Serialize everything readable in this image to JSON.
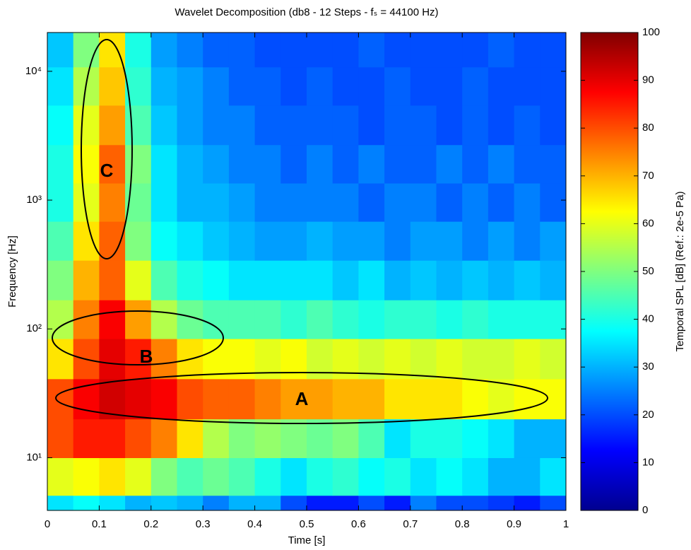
{
  "chart_data": {
    "type": "heatmap",
    "title": "Wavelet Decomposition (db8 - 12 Steps - fₛ = 44100 Hz)",
    "x_label": "Time [s]",
    "y_label": "Frequency [Hz]",
    "colorbar_label": "Temporal SPL [dB] (Ref.: 2e-5 Pa)",
    "colormap": "jet",
    "y_log": true,
    "xlim": [
      0,
      1
    ],
    "xticks": [
      0,
      0.1,
      0.2,
      0.3,
      0.4,
      0.5,
      0.6,
      0.7,
      0.8,
      0.9,
      1
    ],
    "ylim": [
      3.9,
      20000
    ],
    "yticks": [
      {
        "value": 10,
        "label": "10¹"
      },
      {
        "value": 100,
        "label": "10²"
      },
      {
        "value": 1000,
        "label": "10³"
      },
      {
        "value": 10000,
        "label": "10⁴"
      }
    ],
    "clim": [
      0,
      100
    ],
    "cticks": [
      0,
      10,
      20,
      30,
      40,
      50,
      60,
      70,
      80,
      90,
      100
    ],
    "x": [
      0.025,
      0.075,
      0.125,
      0.175,
      0.225,
      0.275,
      0.325,
      0.375,
      0.425,
      0.475,
      0.525,
      0.575,
      0.625,
      0.675,
      0.725,
      0.775,
      0.825,
      0.875,
      0.925,
      0.975
    ],
    "band_edges": [
      3.9,
      5.1,
      10,
      20,
      41,
      84,
      168,
      341,
      684,
      1355,
      2690,
      5450,
      10800,
      20000
    ],
    "z": [
      [
        35,
        38,
        35,
        30,
        32,
        30,
        25,
        30,
        30,
        20,
        15,
        15,
        20,
        15,
        25,
        20,
        20,
        18,
        15,
        20
      ],
      [
        60,
        62,
        65,
        60,
        50,
        45,
        48,
        45,
        40,
        35,
        40,
        42,
        38,
        40,
        35,
        38,
        35,
        30,
        30,
        35
      ],
      [
        80,
        85,
        85,
        80,
        75,
        65,
        55,
        50,
        52,
        50,
        48,
        50,
        45,
        35,
        40,
        40,
        38,
        35,
        30,
        30
      ],
      [
        80,
        88,
        92,
        90,
        88,
        80,
        78,
        78,
        75,
        72,
        72,
        70,
        70,
        65,
        65,
        65,
        62,
        60,
        62,
        62
      ],
      [
        65,
        80,
        90,
        85,
        75,
        65,
        62,
        62,
        60,
        62,
        58,
        60,
        58,
        60,
        58,
        60,
        58,
        58,
        60,
        58
      ],
      [
        55,
        75,
        88,
        72,
        55,
        48,
        45,
        45,
        45,
        42,
        45,
        42,
        40,
        42,
        42,
        40,
        42,
        40,
        40,
        40
      ],
      [
        50,
        70,
        78,
        60,
        45,
        40,
        38,
        35,
        35,
        35,
        35,
        32,
        35,
        30,
        32,
        30,
        32,
        30,
        32,
        30
      ],
      [
        45,
        65,
        78,
        50,
        38,
        35,
        32,
        30,
        28,
        28,
        30,
        28,
        28,
        25,
        28,
        28,
        25,
        28,
        25,
        28
      ],
      [
        40,
        60,
        75,
        48,
        35,
        30,
        30,
        28,
        25,
        25,
        25,
        25,
        22,
        25,
        25,
        22,
        25,
        22,
        25,
        22
      ],
      [
        40,
        62,
        78,
        50,
        35,
        30,
        28,
        25,
        25,
        22,
        25,
        22,
        25,
        22,
        22,
        25,
        22,
        25,
        22,
        22
      ],
      [
        38,
        60,
        72,
        45,
        32,
        28,
        25,
        25,
        22,
        22,
        22,
        22,
        20,
        22,
        22,
        20,
        22,
        20,
        22,
        20
      ],
      [
        35,
        55,
        68,
        42,
        30,
        28,
        25,
        22,
        22,
        20,
        22,
        20,
        20,
        22,
        20,
        20,
        22,
        20,
        20,
        20
      ],
      [
        32,
        50,
        65,
        40,
        28,
        25,
        22,
        22,
        20,
        20,
        20,
        20,
        22,
        20,
        20,
        20,
        20,
        22,
        20,
        20
      ]
    ],
    "annotations": [
      {
        "label": "C"
      },
      {
        "label": "B"
      },
      {
        "label": "A"
      }
    ]
  }
}
